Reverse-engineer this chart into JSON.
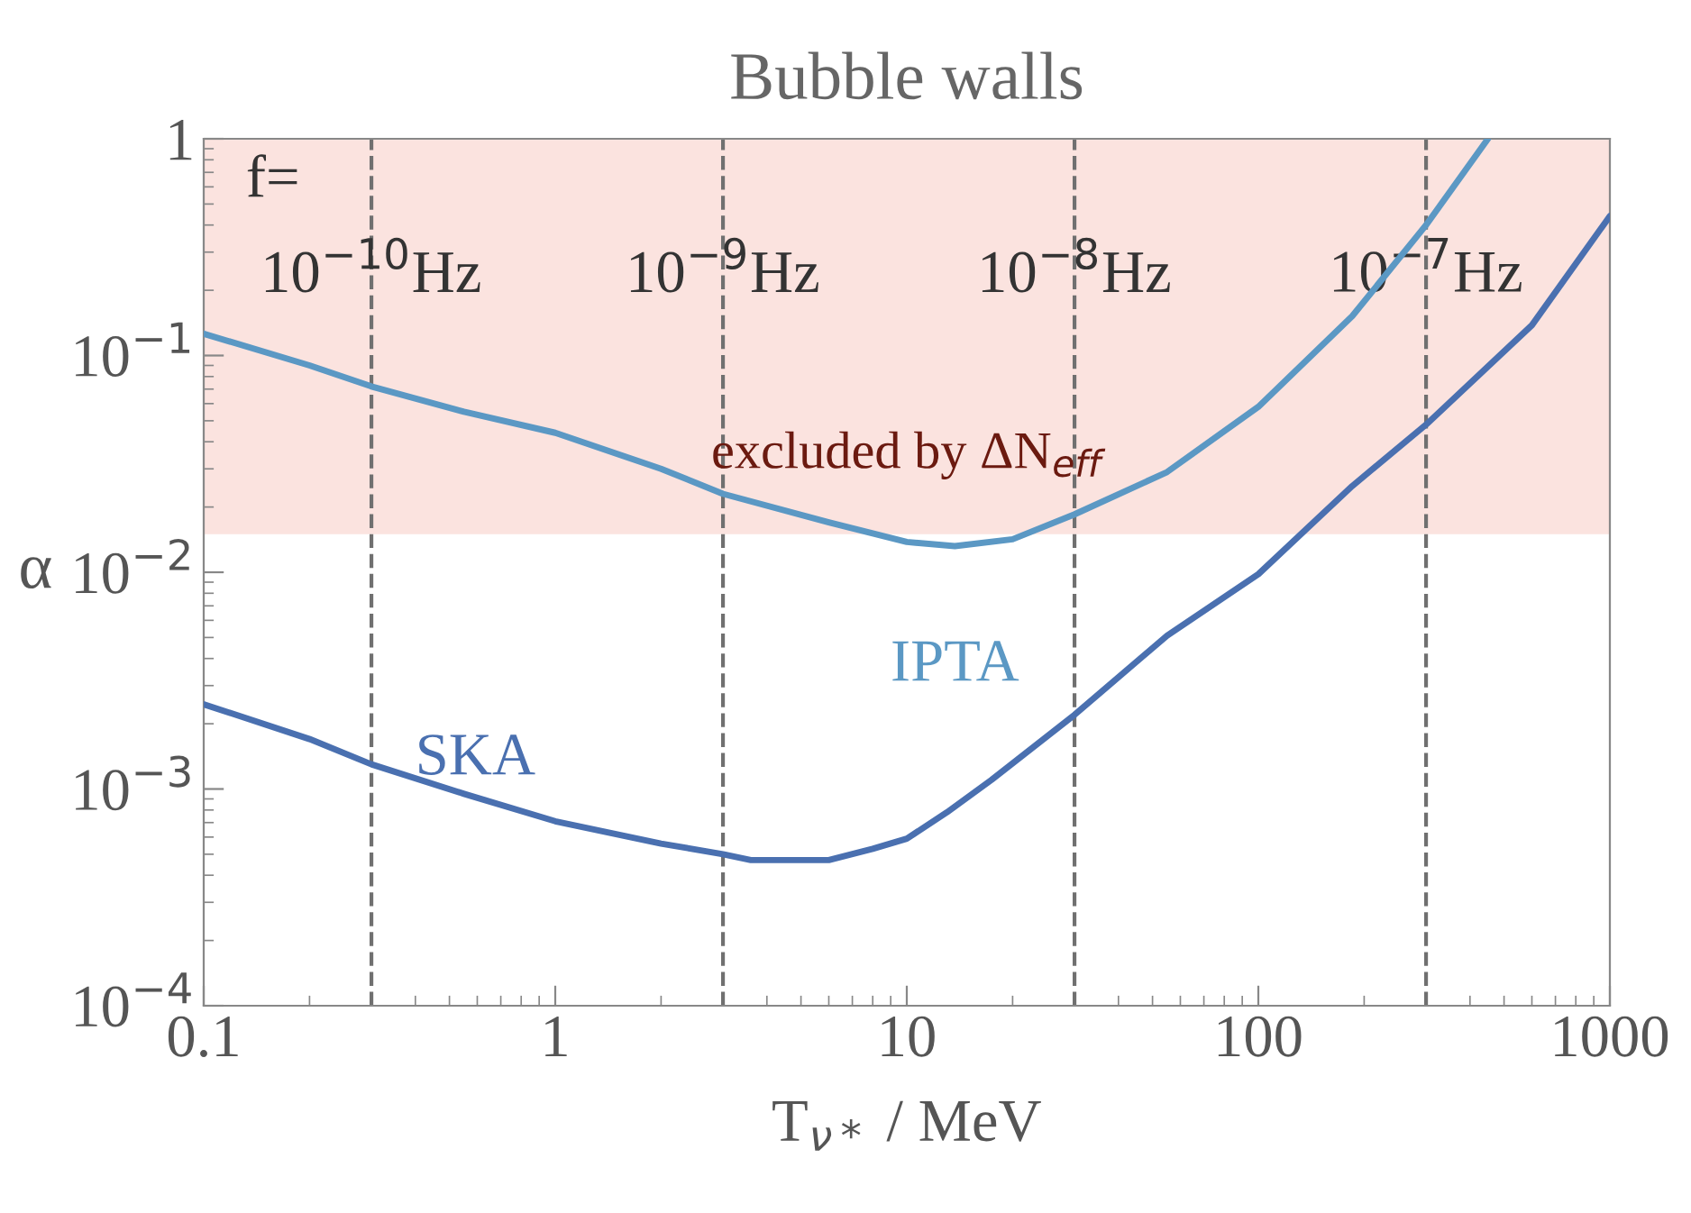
{
  "chart_data": {
    "type": "line",
    "title": "Bubble walls",
    "xlabel": "T$_{ν*}$ / MeV",
    "ylabel": "α",
    "log": "xy",
    "grid": false,
    "legend": false,
    "xlim": [
      0.1,
      1000
    ],
    "xticks": [
      0.1,
      1,
      10,
      100,
      1000
    ],
    "ylim": [
      0.0001,
      1
    ],
    "yticks": [
      {
        "value": 0.0001,
        "label": "10$^{−4}$"
      },
      {
        "value": 0.001,
        "label": "10$^{−3}$"
      },
      {
        "value": 0.01,
        "label": "10$^{−2}$"
      },
      {
        "value": 0.1,
        "label": "10$^{−1}$"
      },
      {
        "value": 1,
        "label": "1"
      }
    ],
    "series": [
      {
        "name": "IPTA",
        "color": "#5b98c4",
        "x": [
          0.1,
          0.2,
          0.3,
          0.55,
          1,
          2,
          3,
          6,
          10,
          13.7,
          20,
          30,
          55,
          100,
          185,
          300,
          450
        ],
        "values": [
          0.126,
          0.09,
          0.072,
          0.055,
          0.044,
          0.03,
          0.023,
          0.017,
          0.0138,
          0.0132,
          0.0142,
          0.0185,
          0.029,
          0.058,
          0.152,
          0.4,
          1.0
        ]
      },
      {
        "name": "SKA",
        "color": "#4a70b0",
        "x": [
          0.1,
          0.2,
          0.3,
          0.55,
          1,
          2,
          3,
          3.6,
          6,
          8,
          10,
          13,
          17.4,
          30,
          55,
          100,
          185,
          300,
          600,
          1000
        ],
        "values": [
          0.00246,
          0.0017,
          0.0013,
          0.00095,
          0.00071,
          0.00056,
          0.0005,
          0.00047,
          0.00047,
          0.00053,
          0.00059,
          0.00078,
          0.0011,
          0.0022,
          0.0051,
          0.0098,
          0.025,
          0.048,
          0.138,
          0.44
        ]
      }
    ],
    "bands": [
      {
        "axis": "y",
        "from": 0.015,
        "to": 1,
        "label": "excluded by ΔN$_{eff}$",
        "color": "#fbe3df"
      }
    ],
    "ref_lines": [
      {
        "axis": "x",
        "value": 0.3,
        "label": "10$^{−10}$Hz",
        "color": "#707070",
        "line_style": "dashed"
      },
      {
        "axis": "x",
        "value": 3,
        "label": "10$^{−9}$Hz",
        "color": "#707070",
        "line_style": "dashed"
      },
      {
        "axis": "x",
        "value": 30,
        "label": "10$^{−8}$Hz",
        "color": "#707070",
        "line_style": "dashed"
      },
      {
        "axis": "x",
        "value": 300,
        "label": "10$^{−7}$Hz",
        "color": "#707070",
        "line_style": "dashed"
      }
    ],
    "annotations": [
      "f="
    ]
  }
}
